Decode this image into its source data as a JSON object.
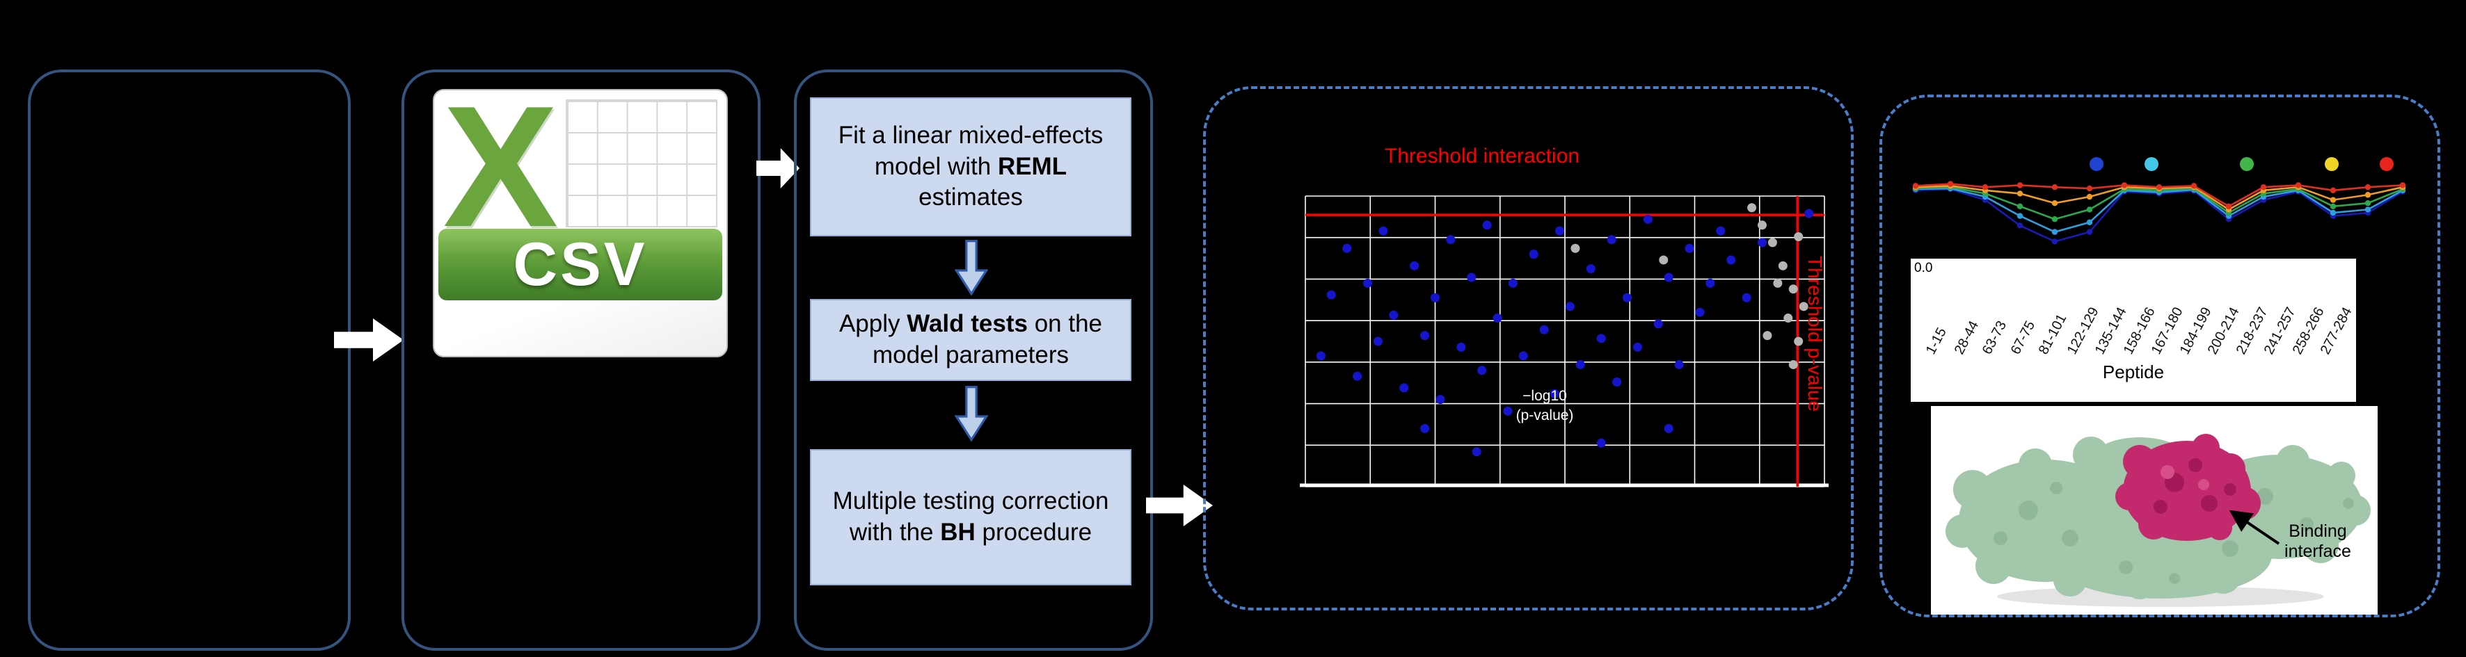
{
  "csv_icon": {
    "x_letter": "X",
    "label": "CSV"
  },
  "workflow": {
    "step1_pre": "Fit a linear mixed-effects model with ",
    "step1_bold": "REML",
    "step1_post": " estimates",
    "step2_pre": "Apply ",
    "step2_bold": "Wald tests",
    "step2_post": " on the model parameters",
    "step3_line1": "Multiple testing correction",
    "step3_pre": "with the ",
    "step3_bold": "BH",
    "step3_post": " procedure"
  },
  "chart_data": [
    {
      "type": "scatter",
      "panel": "global-result-plot",
      "grid": true,
      "threshold_label_horizontal": "Threshold interaction",
      "threshold_label_vertical": "Threshold p-value",
      "annotation_line1": "−log10",
      "annotation_line2": "(p-value)",
      "thresholds": {
        "horizontal_y_pct": 6.5,
        "vertical_x_pct": 94.8
      },
      "series": [
        {
          "name": "significant-peptides",
          "color": "#1515cf",
          "points": [
            [
              3,
              55
            ],
            [
              5,
              34
            ],
            [
              8,
              18
            ],
            [
              10,
              62
            ],
            [
              12,
              30
            ],
            [
              14,
              50
            ],
            [
              15,
              12
            ],
            [
              17,
              41
            ],
            [
              19,
              66
            ],
            [
              21,
              24
            ],
            [
              23,
              48
            ],
            [
              25,
              35
            ],
            [
              26,
              70
            ],
            [
              28,
              15
            ],
            [
              30,
              52
            ],
            [
              32,
              28
            ],
            [
              34,
              60
            ],
            [
              35,
              10
            ],
            [
              37,
              42
            ],
            [
              39,
              74
            ],
            [
              40,
              30
            ],
            [
              42,
              55
            ],
            [
              44,
              20
            ],
            [
              46,
              46
            ],
            [
              48,
              68
            ],
            [
              49,
              12
            ],
            [
              51,
              38
            ],
            [
              53,
              58
            ],
            [
              55,
              25
            ],
            [
              57,
              49
            ],
            [
              59,
              15
            ],
            [
              60,
              64
            ],
            [
              62,
              35
            ],
            [
              64,
              52
            ],
            [
              66,
              8
            ],
            [
              68,
              44
            ],
            [
              70,
              28
            ],
            [
              72,
              58
            ],
            [
              74,
              18
            ],
            [
              76,
              40
            ],
            [
              78,
              30
            ],
            [
              80,
              12
            ],
            [
              82,
              22
            ],
            [
              85,
              35
            ],
            [
              88,
              16
            ],
            [
              97,
              6
            ],
            [
              57,
              85
            ],
            [
              33,
              88
            ],
            [
              23,
              80
            ],
            [
              70,
              80
            ]
          ]
        },
        {
          "name": "non-significant-peptides",
          "color": "#b5b5b5",
          "points": [
            [
              86,
              4
            ],
            [
              88,
              10
            ],
            [
              90,
              16
            ],
            [
              92,
              24
            ],
            [
              94,
              32
            ],
            [
              93,
              42
            ],
            [
              95,
              50
            ],
            [
              94,
              58
            ],
            [
              91,
              30
            ],
            [
              95,
              14
            ],
            [
              89,
              48
            ],
            [
              96,
              38
            ],
            [
              69,
              22
            ],
            [
              52,
              18
            ]
          ]
        }
      ]
    },
    {
      "type": "line",
      "panel": "deuterium-uptake-plot",
      "categories": [
        "1-15",
        "28-44",
        "63-73",
        "67-75",
        "81-101",
        "122-129",
        "135-144",
        "158-166",
        "167-180",
        "184-199",
        "200-214",
        "218-237",
        "241-257",
        "258-266",
        "277-284"
      ],
      "xlabel": "Peptide",
      "y_tick_label": "0.0",
      "legend_dots": [
        {
          "color": "#2143d1",
          "x": 268
        },
        {
          "color": "#45c8e8",
          "x": 347
        },
        {
          "color": "#43b649",
          "x": 484
        },
        {
          "color": "#f0d525",
          "x": 606
        },
        {
          "color": "#e8251d",
          "x": 685
        }
      ],
      "series": [
        {
          "name": "dark-blue",
          "color": "#1a1ab8",
          "values": [
            0.85,
            0.87,
            0.7,
            0.3,
            0.05,
            0.2,
            0.83,
            0.8,
            0.84,
            0.4,
            0.7,
            0.83,
            0.45,
            0.5,
            0.83
          ]
        },
        {
          "name": "light-blue",
          "color": "#2f9fe0",
          "values": [
            0.87,
            0.88,
            0.75,
            0.45,
            0.2,
            0.35,
            0.85,
            0.82,
            0.86,
            0.45,
            0.75,
            0.85,
            0.5,
            0.55,
            0.85
          ]
        },
        {
          "name": "green",
          "color": "#2ea84c",
          "values": [
            0.88,
            0.9,
            0.8,
            0.6,
            0.4,
            0.55,
            0.87,
            0.85,
            0.88,
            0.5,
            0.8,
            0.87,
            0.6,
            0.65,
            0.87
          ]
        },
        {
          "name": "orange",
          "color": "#f09c28",
          "values": [
            0.9,
            0.92,
            0.85,
            0.8,
            0.65,
            0.75,
            0.9,
            0.88,
            0.9,
            0.55,
            0.85,
            0.9,
            0.7,
            0.78,
            0.9
          ]
        },
        {
          "name": "red",
          "color": "#e03020",
          "values": [
            0.92,
            0.95,
            0.9,
            0.93,
            0.9,
            0.88,
            0.93,
            0.9,
            0.92,
            0.6,
            0.9,
            0.93,
            0.85,
            0.9,
            0.93
          ]
        }
      ]
    }
  ],
  "structure_annotation": {
    "line1": "Binding",
    "line2": "interface"
  }
}
